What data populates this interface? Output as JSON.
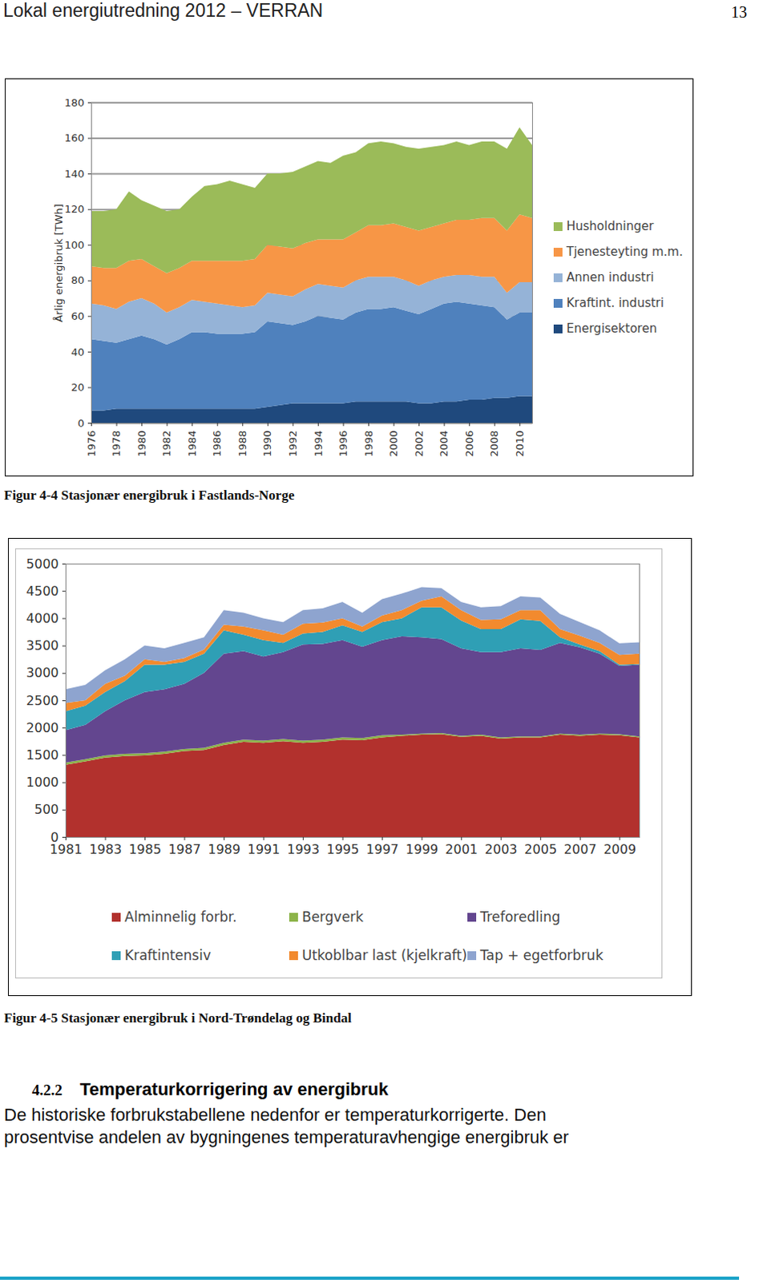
{
  "header": {
    "title": "Lokal energiutredning 2012 – VERRAN",
    "page": 13
  },
  "chart_data": [
    {
      "type": "area",
      "stacked": true,
      "grid": true,
      "legend": "right",
      "y_label": "Årlig energibruk [TWh]",
      "x": [
        1976,
        1977,
        1978,
        1979,
        1980,
        1981,
        1982,
        1983,
        1984,
        1985,
        1986,
        1987,
        1988,
        1989,
        1990,
        1991,
        1992,
        1993,
        1994,
        1995,
        1996,
        1997,
        1998,
        1999,
        2000,
        2001,
        2002,
        2003,
        2004,
        2005,
        2006,
        2007,
        2008,
        2009,
        2010,
        2011
      ],
      "xlim": [
        1976,
        2011
      ],
      "xticks": [
        1976,
        1978,
        1980,
        1982,
        1984,
        1986,
        1988,
        1990,
        1992,
        1994,
        1996,
        1998,
        2000,
        2002,
        2004,
        2006,
        2008,
        2010
      ],
      "ylim": [
        0,
        180
      ],
      "yticks": [
        0,
        20,
        40,
        60,
        80,
        100,
        120,
        140,
        160,
        180
      ],
      "series": [
        {
          "name": "Energisektoren",
          "color": "#1f497d",
          "values": [
            7,
            7,
            8,
            8,
            8,
            8,
            8,
            8,
            8,
            8,
            8,
            8,
            8,
            8,
            9,
            10,
            11,
            11,
            11,
            11,
            11,
            12,
            12,
            12,
            12,
            12,
            11,
            11,
            12,
            12,
            13,
            13,
            14,
            14,
            15,
            15
          ]
        },
        {
          "name": "Kraftint. industri",
          "color": "#4f81bd",
          "values": [
            40,
            39,
            37,
            39,
            41,
            39,
            36,
            39,
            43,
            43,
            42,
            42,
            42,
            43,
            48,
            46,
            44,
            46,
            49,
            48,
            47,
            50,
            52,
            52,
            53,
            51,
            50,
            53,
            55,
            56,
            54,
            53,
            51,
            44,
            47,
            47
          ]
        },
        {
          "name": "Annen industri",
          "color": "#95b3d7",
          "values": [
            20,
            20,
            19,
            21,
            21,
            20,
            18,
            18,
            18,
            17,
            17,
            16,
            15,
            15,
            16,
            16,
            16,
            18,
            18,
            18,
            18,
            18,
            18,
            18,
            17,
            17,
            16,
            16,
            15,
            15,
            16,
            16,
            17,
            15,
            17,
            17
          ]
        },
        {
          "name": "Tjenesteyting m.m.",
          "color": "#f79646",
          "values": [
            21,
            21,
            23,
            23,
            22,
            21,
            22,
            22,
            22,
            23,
            24,
            25,
            26,
            26,
            27,
            27,
            27,
            26,
            25,
            26,
            27,
            27,
            29,
            29,
            30,
            30,
            31,
            30,
            30,
            31,
            31,
            33,
            33,
            35,
            38,
            36
          ]
        },
        {
          "name": "Husholdninger",
          "color": "#9bbb59",
          "values": [
            31,
            32,
            33,
            39,
            33,
            34,
            35,
            33,
            36,
            42,
            43,
            45,
            43,
            40,
            40,
            41,
            43,
            43,
            44,
            43,
            47,
            45,
            46,
            47,
            45,
            45,
            46,
            45,
            44,
            44,
            42,
            43,
            43,
            46,
            49,
            41
          ]
        }
      ]
    },
    {
      "type": "area",
      "stacked": true,
      "grid": false,
      "legend": "bottom",
      "x": [
        1981,
        1982,
        1983,
        1984,
        1985,
        1986,
        1987,
        1988,
        1989,
        1990,
        1991,
        1992,
        1993,
        1994,
        1995,
        1996,
        1997,
        1998,
        1999,
        2000,
        2001,
        2002,
        2003,
        2004,
        2005,
        2006,
        2007,
        2008,
        2009,
        2010
      ],
      "xlim": [
        1981,
        2010
      ],
      "xticks": [
        1981,
        1983,
        1985,
        1987,
        1989,
        1991,
        1993,
        1995,
        1997,
        1999,
        2001,
        2003,
        2005,
        2007,
        2009
      ],
      "ylim": [
        0,
        5000
      ],
      "yticks": [
        0,
        500,
        1000,
        1500,
        2000,
        2500,
        3000,
        3500,
        4000,
        4500,
        5000
      ],
      "series": [
        {
          "name": "Alminnelig forbr.",
          "color": "#b2312d",
          "values": [
            1320,
            1380,
            1450,
            1480,
            1490,
            1520,
            1570,
            1590,
            1680,
            1740,
            1720,
            1750,
            1720,
            1740,
            1780,
            1770,
            1820,
            1850,
            1870,
            1880,
            1830,
            1850,
            1800,
            1820,
            1820,
            1870,
            1850,
            1870,
            1860,
            1820
          ]
        },
        {
          "name": "Bergverk",
          "color": "#8db44a",
          "values": [
            40,
            40,
            40,
            40,
            40,
            40,
            40,
            40,
            40,
            40,
            40,
            40,
            40,
            40,
            40,
            40,
            40,
            20,
            20,
            20,
            20,
            20,
            20,
            20,
            20,
            20,
            20,
            20,
            20,
            20
          ]
        },
        {
          "name": "Treforedling",
          "color": "#63468f",
          "values": [
            590,
            630,
            810,
            980,
            1120,
            1140,
            1190,
            1370,
            1630,
            1620,
            1540,
            1590,
            1760,
            1750,
            1780,
            1670,
            1740,
            1800,
            1760,
            1720,
            1600,
            1510,
            1560,
            1610,
            1580,
            1660,
            1600,
            1460,
            1250,
            1310
          ]
        },
        {
          "name": "Kraftintensiv",
          "color": "#2f9fb5",
          "values": [
            350,
            350,
            350,
            350,
            500,
            450,
            400,
            350,
            430,
            300,
            300,
            170,
            200,
            220,
            270,
            270,
            330,
            330,
            550,
            580,
            510,
            420,
            420,
            530,
            530,
            100,
            50,
            50,
            20,
            10
          ]
        },
        {
          "name": "Utkoblbar last (kjelkraft)",
          "color": "#f28a2e",
          "values": [
            150,
            100,
            150,
            100,
            100,
            50,
            70,
            80,
            100,
            150,
            180,
            150,
            180,
            170,
            130,
            100,
            120,
            150,
            120,
            200,
            190,
            170,
            180,
            170,
            200,
            150,
            160,
            150,
            180,
            190
          ]
        },
        {
          "name": "Tap + egetforbruk",
          "color": "#8ea4cf",
          "values": [
            250,
            280,
            250,
            300,
            250,
            250,
            280,
            220,
            270,
            250,
            220,
            230,
            250,
            260,
            300,
            250,
            300,
            300,
            250,
            150,
            150,
            230,
            240,
            250,
            230,
            280,
            250,
            230,
            210,
            210
          ]
        }
      ]
    }
  ],
  "figures": [
    {
      "caption": "Figur 4-4 Stasjonær energibruk i Fastlands-Norge"
    },
    {
      "caption": "Figur 4-5 Stasjonær energibruk i Nord-Trøndelag og Bindal"
    }
  ],
  "section": {
    "number": "4.2.2",
    "heading": "Temperaturkorrigering av energibruk",
    "text": [
      "De historiske forbrukstabellene nedenfor er temperaturkorrigerte. Den",
      "prosentvise andelen av bygningenes temperaturavhengige energibruk er"
    ]
  }
}
